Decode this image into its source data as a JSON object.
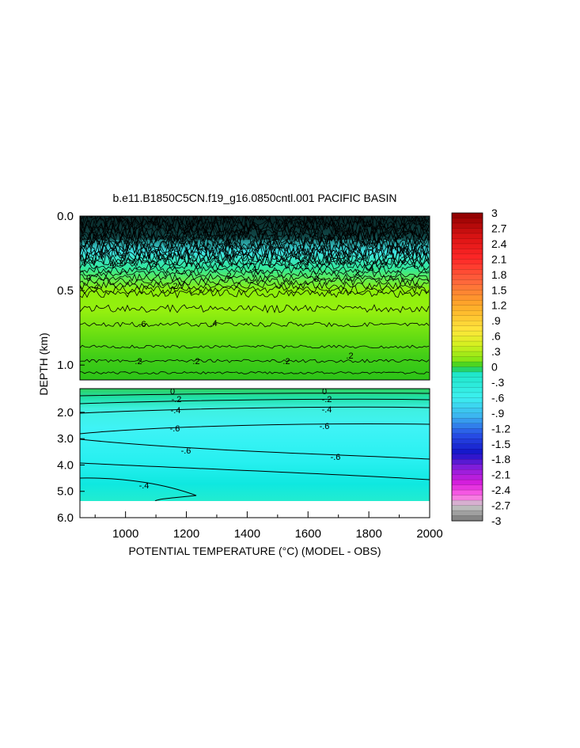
{
  "chart_data": {
    "type": "heatmap",
    "title": "b.e11.B1850C5CN.f19_g16.0850cntl.001 PACIFIC BASIN",
    "xlabel": "POTENTIAL TEMPERATURE (°C) (MODEL - OBS)",
    "ylabel": "DEPTH (km)",
    "xlim": [
      850,
      2000
    ],
    "x_ticks": [
      "1000",
      "1200",
      "1400",
      "1600",
      "1800",
      "2000"
    ],
    "x_tick_values": [
      1000,
      1200,
      1400,
      1600,
      1800,
      2000
    ],
    "upper_panel": {
      "ylim": [
        0.0,
        1.1
      ],
      "y_ticks": [
        "0.0",
        "0.5",
        "1.0"
      ],
      "y_tick_values": [
        0.0,
        0.5,
        1.0
      ]
    },
    "lower_panel": {
      "ylim": [
        1.1,
        6.0
      ],
      "y_ticks": [
        "2.0",
        "3.0",
        "4.0",
        "5.0",
        "6.0"
      ],
      "y_tick_values": [
        2.0,
        3.0,
        4.0,
        5.0,
        6.0
      ]
    },
    "colorbar": {
      "labels": [
        "3",
        "2.7",
        "2.4",
        "2.1",
        "1.8",
        "1.5",
        "1.2",
        ".9",
        ".6",
        ".3",
        "0",
        "-.3",
        "-.6",
        "-.9",
        "-1.2",
        "-1.5",
        "-1.8",
        "-2.1",
        "-2.4",
        "-2.7",
        "-3"
      ],
      "range": [
        -3,
        3
      ]
    },
    "contour_labels_upper": [
      ".4",
      "0",
      ".2",
      "-.2",
      "0",
      ".2",
      ".2",
      ".4",
      "0",
      ".2",
      ".2",
      ".4",
      ".2",
      ".6",
      ".4",
      ".2",
      ".2",
      ".2",
      ".2"
    ],
    "contour_labels_lower": [
      "0",
      "-.2",
      "-.4",
      "0",
      "-.2",
      "-.4",
      "-.6",
      "-.6",
      "-.6",
      "-.6",
      "-.4"
    ]
  }
}
